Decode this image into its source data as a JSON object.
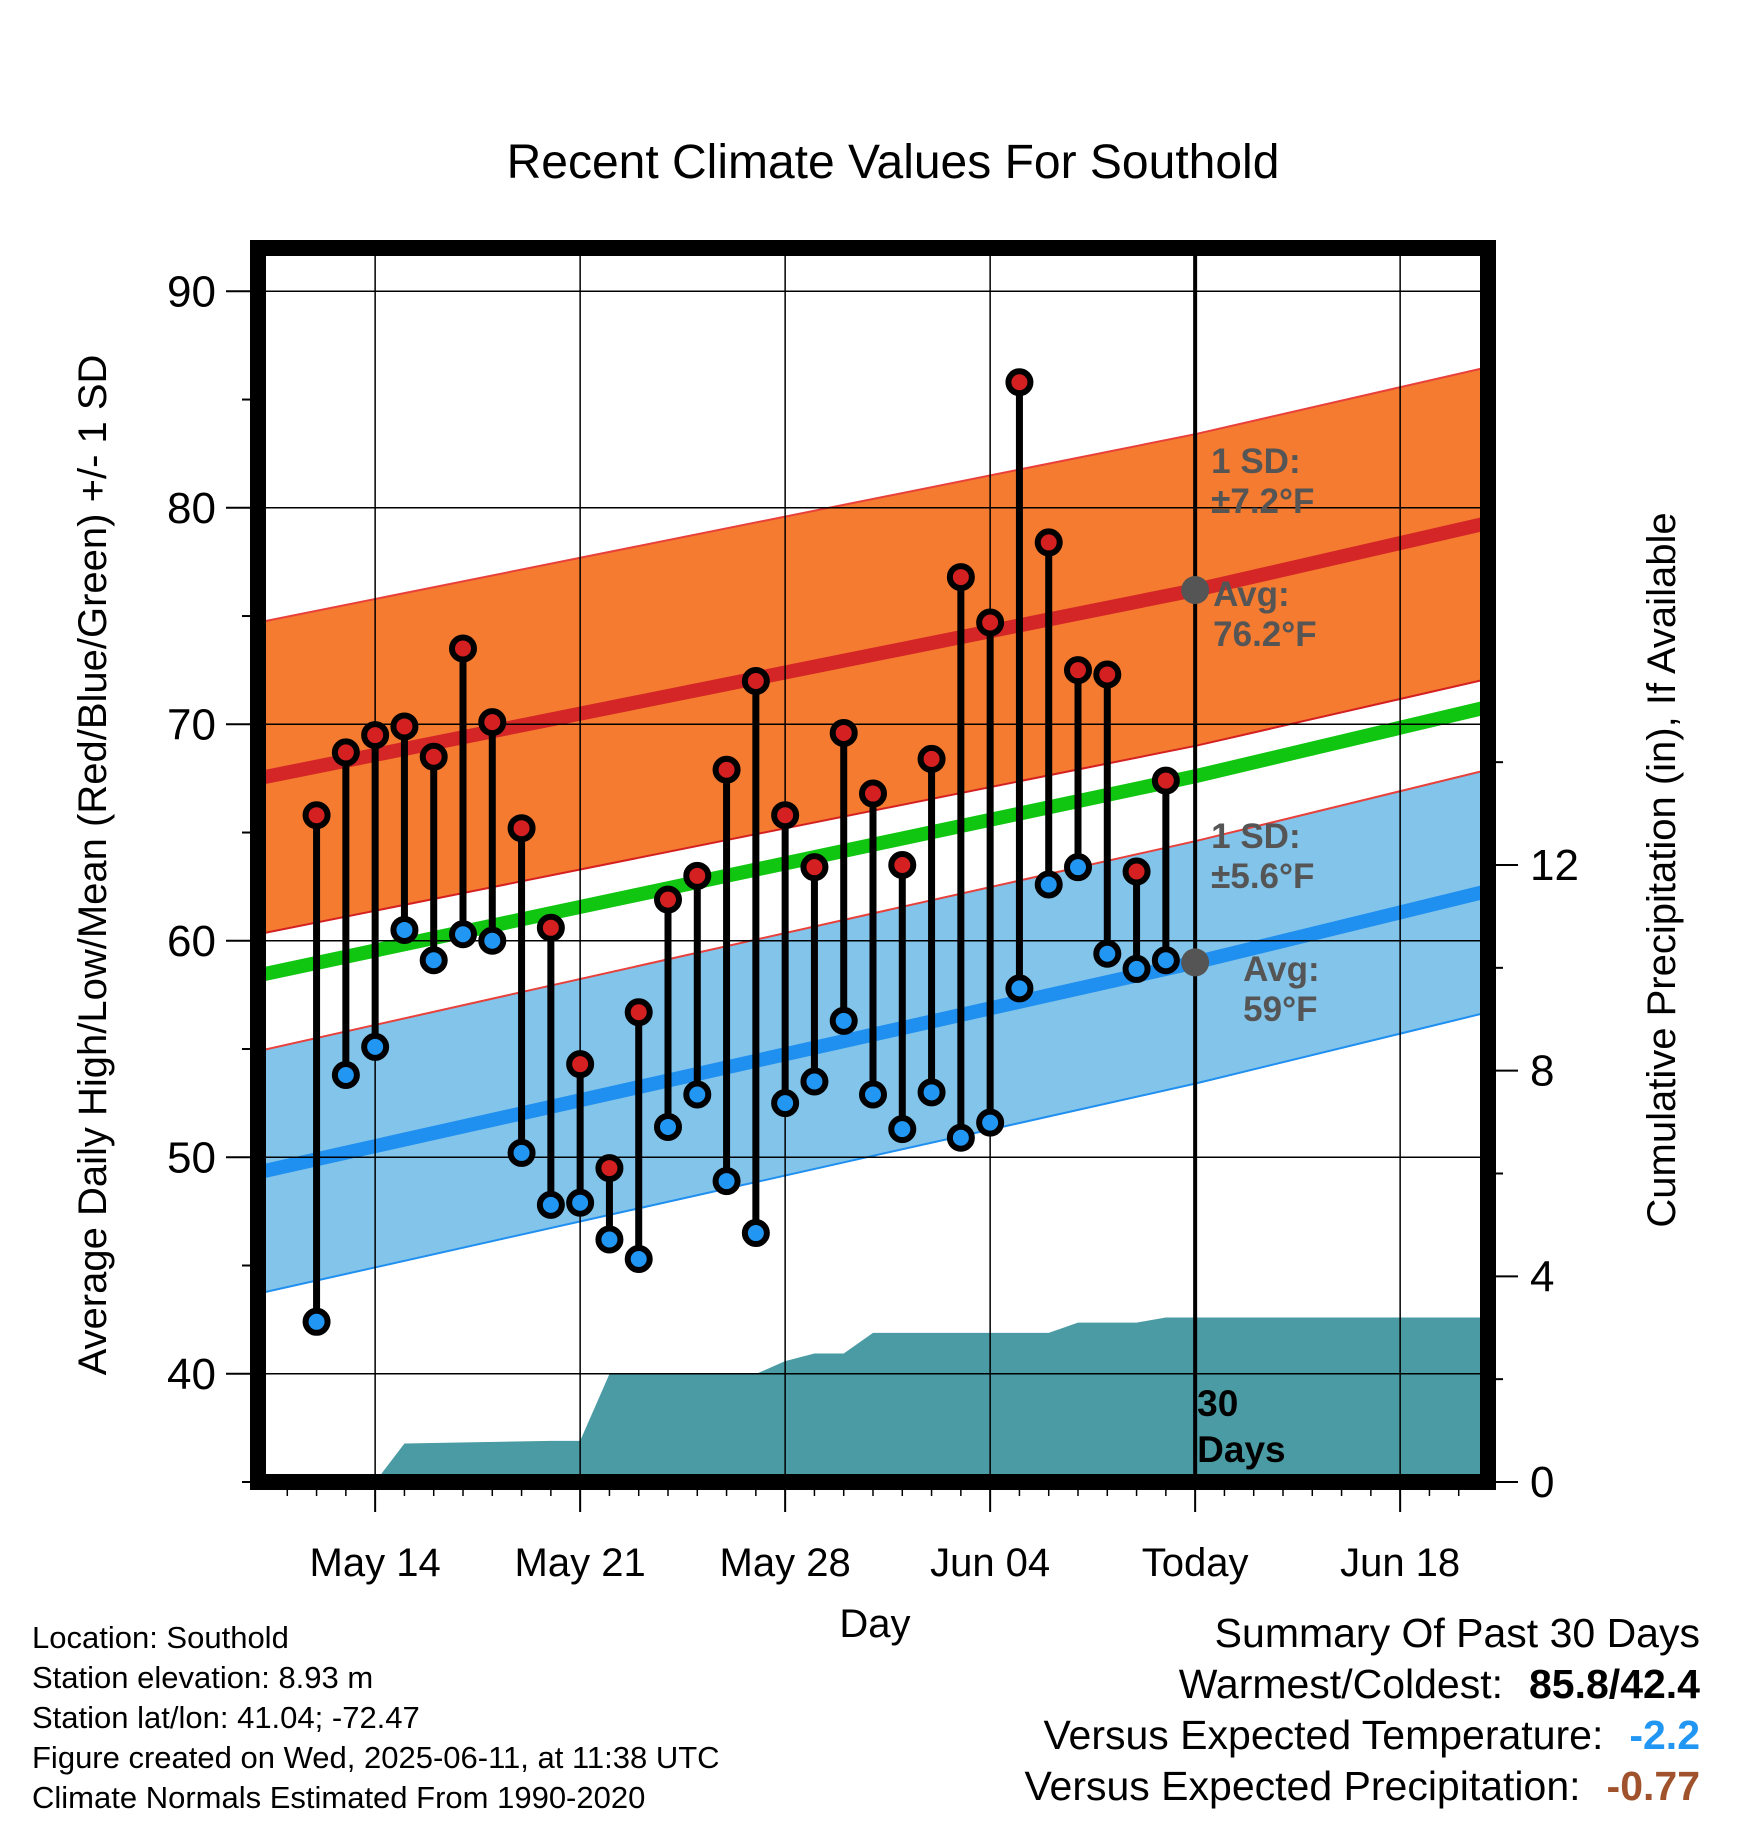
{
  "chart_data": {
    "type": "line",
    "title": "Recent Climate Values For Southold",
    "xlabel": "Day",
    "ylabel": "Average Daily High/Low/Mean (Red/Blue/Green) +/- 1 SD",
    "y2label": "Cumulative Precipitation (in), If Available",
    "ylim": [
      35,
      92
    ],
    "y2lim": [
      0,
      24
    ],
    "yticks": [
      40,
      50,
      60,
      70,
      80,
      90
    ],
    "y2ticks": [
      0,
      4,
      8,
      12
    ],
    "x_tick_labels": [
      "May 14",
      "May 21",
      "May 28",
      "Jun 04",
      "Today",
      "Jun 18"
    ],
    "x_tick_dates": [
      "2025-05-14",
      "2025-05-21",
      "2025-05-28",
      "2025-06-04",
      "2025-06-11",
      "2025-06-18"
    ],
    "xlim": [
      "2025-05-10",
      "2025-06-21"
    ],
    "today": "2025-06-11",
    "grid": true,
    "dates": [
      "2025-05-12",
      "2025-05-13",
      "2025-05-14",
      "2025-05-15",
      "2025-05-16",
      "2025-05-17",
      "2025-05-18",
      "2025-05-19",
      "2025-05-20",
      "2025-05-21",
      "2025-05-22",
      "2025-05-23",
      "2025-05-24",
      "2025-05-25",
      "2025-05-26",
      "2025-05-27",
      "2025-05-28",
      "2025-05-29",
      "2025-05-30",
      "2025-05-31",
      "2025-06-01",
      "2025-06-02",
      "2025-06-03",
      "2025-06-04",
      "2025-06-05",
      "2025-06-06",
      "2025-06-07",
      "2025-06-08",
      "2025-06-09",
      "2025-06-10"
    ],
    "series": [
      {
        "name": "High",
        "color": "#d42020",
        "values": [
          65.8,
          68.7,
          69.5,
          69.9,
          68.5,
          73.5,
          70.1,
          65.2,
          60.6,
          54.3,
          49.5,
          56.7,
          61.9,
          63.0,
          67.9,
          72.0,
          65.8,
          63.4,
          69.6,
          66.8,
          63.5,
          68.4,
          76.8,
          74.7,
          85.8,
          78.4,
          72.5,
          72.3,
          63.2,
          67.4
        ]
      },
      {
        "name": "Low",
        "color": "#2196f3",
        "values": [
          42.4,
          53.8,
          55.1,
          60.5,
          59.1,
          60.3,
          60.0,
          50.2,
          47.8,
          47.9,
          46.2,
          45.3,
          51.4,
          52.9,
          48.9,
          46.5,
          52.5,
          53.5,
          56.3,
          52.9,
          51.3,
          53.0,
          50.9,
          51.6,
          57.8,
          62.6,
          63.4,
          59.4,
          58.7,
          59.1
        ]
      }
    ],
    "normals": {
      "dates": [
        "2025-05-10",
        "2025-06-11",
        "2025-06-21"
      ],
      "high_avg": [
        67.5,
        76.2,
        79.3
      ],
      "high_sd": 7.2,
      "low_avg": [
        49.3,
        59.0,
        62.3
      ],
      "low_sd": 5.6,
      "mean_avg": [
        58.4,
        67.6,
        70.8
      ],
      "colors": {
        "high_band": "#f47b30",
        "high_line": "#d42626",
        "low_band": "#82c4ea",
        "low_line": "#1f8ff0",
        "mean_line": "#11c611"
      }
    },
    "precipitation": {
      "color": "#4a9ba4",
      "dates": [
        "2025-05-13",
        "2025-05-14",
        "2025-05-15",
        "2025-05-20",
        "2025-05-21",
        "2025-05-22",
        "2025-05-27",
        "2025-05-28",
        "2025-05-29",
        "2025-05-30",
        "2025-05-31",
        "2025-06-05",
        "2025-06-06",
        "2025-06-07",
        "2025-06-08",
        "2025-06-09",
        "2025-06-10",
        "2025-06-21"
      ],
      "values": [
        0,
        0,
        0.75,
        0.8,
        0.8,
        2.1,
        2.1,
        2.35,
        2.5,
        2.5,
        2.9,
        2.9,
        2.9,
        3.1,
        3.1,
        3.1,
        3.2,
        3.2
      ]
    },
    "annotations": {
      "high_sd_label": [
        "1 SD:",
        "±7.2°F"
      ],
      "high_avg_label": [
        "Avg:",
        "76.2°F"
      ],
      "low_sd_label": [
        "1 SD:",
        "±5.6°F"
      ],
      "low_avg_label": [
        "Avg:",
        "59°F"
      ],
      "days_label": [
        "30",
        "Days"
      ],
      "label_color": "#555555"
    }
  },
  "info": {
    "location": "Location: Southold",
    "elevation": "Station elevation: 8.93 m",
    "latlon": "Station lat/lon: 41.04; -72.47",
    "created": "Figure created on Wed, 2025-06-11, at 11:38 UTC",
    "normals_period": "Climate Normals Estimated From 1990-2020"
  },
  "summary": {
    "heading": "Summary Of Past 30 Days",
    "warmest_coldest_label": "Warmest/Coldest:",
    "warmest_coldest_value": "85.8/42.4",
    "temp_label": "Versus Expected Temperature:",
    "temp_value": "-2.2",
    "temp_color": "#2196f3",
    "precip_label": "Versus Expected Precipitation:",
    "precip_value": "-0.77",
    "precip_color": "#a0522d"
  }
}
